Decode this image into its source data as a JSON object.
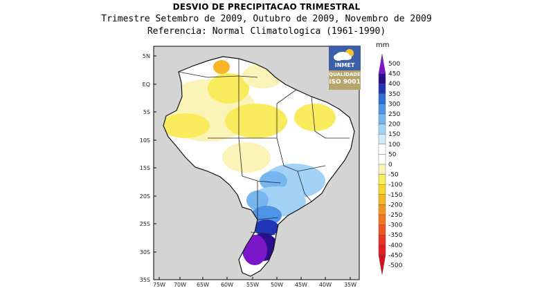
{
  "header": {
    "title": "DESVIO DE PRECIPITACAO TRIMESTRAL",
    "subtitle": "Trimestre Setembro de 2009, Outubro de 2009, Novembro de 2009",
    "reference": "Referencia: Normal Climatologica (1961-1990)"
  },
  "map": {
    "lat_labels": [
      "5N",
      "EQ",
      "5S",
      "10S",
      "15S",
      "20S",
      "25S",
      "30S",
      "35S"
    ],
    "lon_labels": [
      "75W",
      "70W",
      "65W",
      "60W",
      "55W",
      "50W",
      "45W",
      "40W",
      "35W"
    ],
    "ocean_color": "#d4d4d4",
    "land_color": "#ffffff"
  },
  "logo": {
    "name": "INMET",
    "quality": "QUALIDADE",
    "iso": "ISO 9001",
    "icon": "cloud-sun-icon"
  },
  "colorbar": {
    "unit": "mm",
    "labels": [
      "500",
      "450",
      "400",
      "350",
      "300",
      "250",
      "200",
      "150",
      "100",
      "50",
      "0",
      "-50",
      "-100",
      "-150",
      "-200",
      "-250",
      "-300",
      "-350",
      "-400",
      "-450",
      "-500"
    ],
    "colors": [
      "#7b16c9",
      "#2a0f8c",
      "#1f35b5",
      "#2f6fd6",
      "#4d93e8",
      "#76b5f0",
      "#a3d2f7",
      "#d2ecfc",
      "#ffffff",
      "#ffffff",
      "#fbf4b8",
      "#f8ec5c",
      "#f6d72a",
      "#f6b627",
      "#f49623",
      "#f2761f",
      "#ef551d",
      "#ea3420",
      "#e21d24",
      "#d80f20"
    ]
  }
}
